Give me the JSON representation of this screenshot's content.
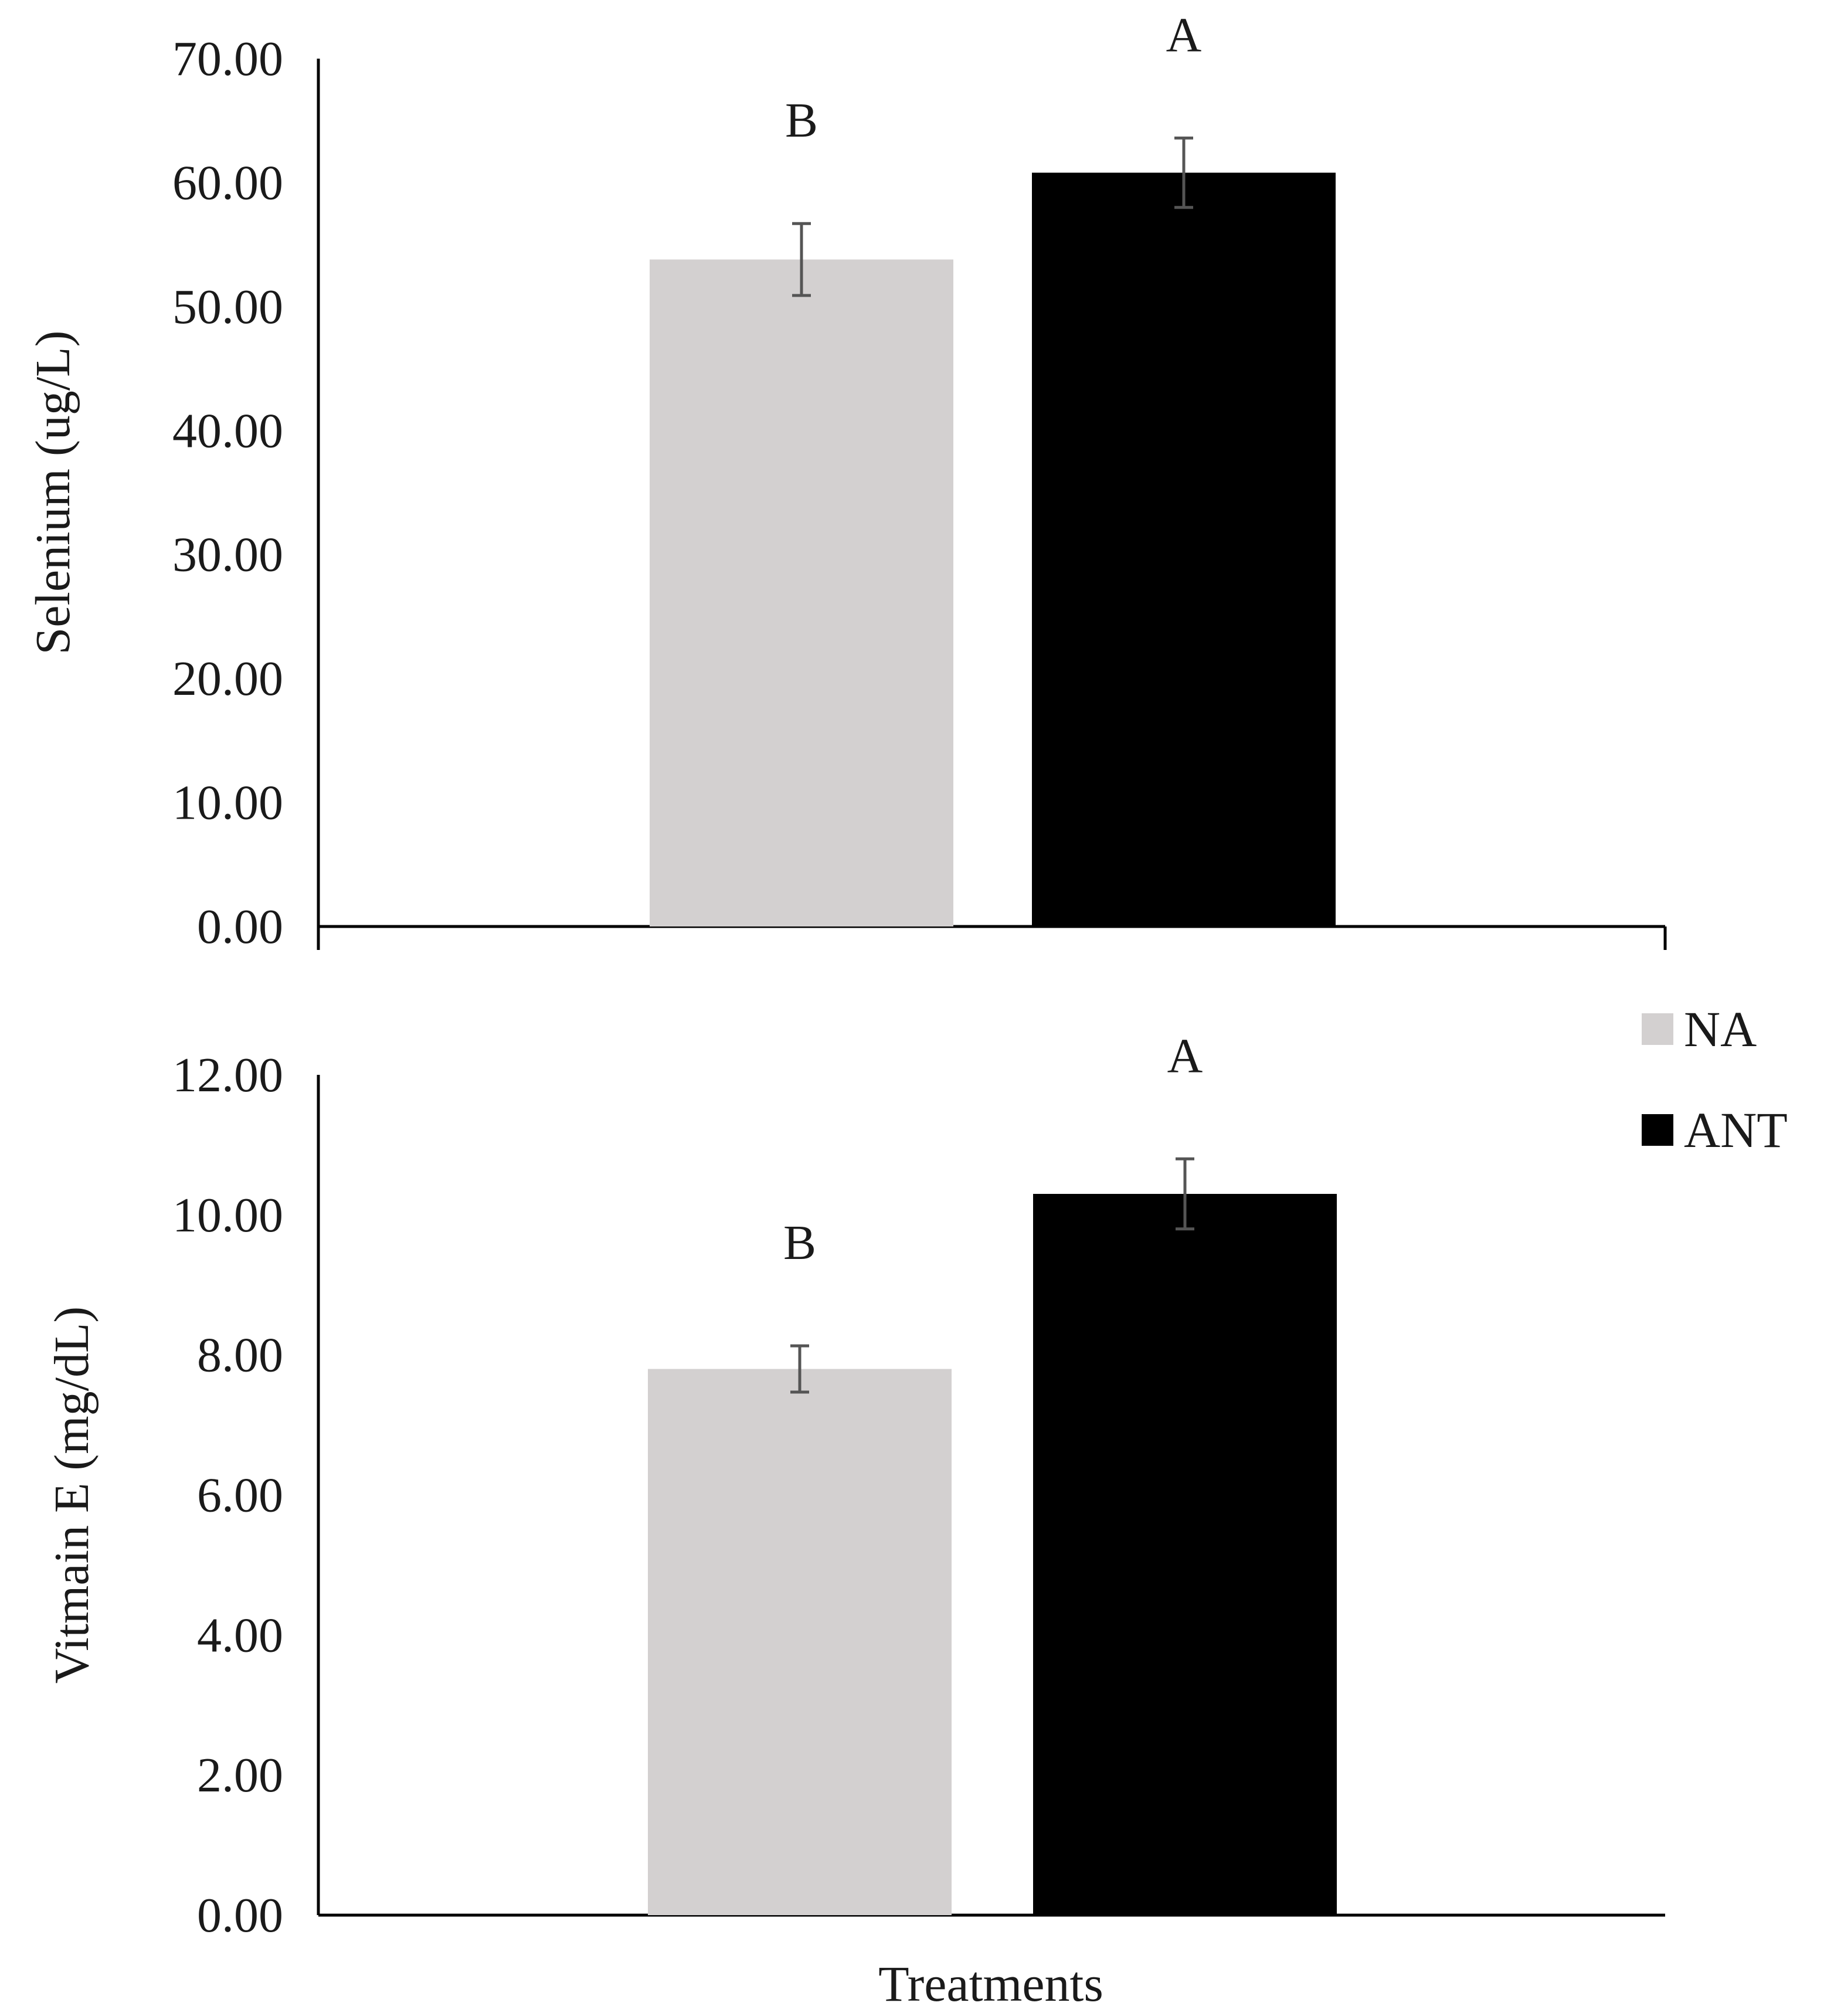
{
  "chart_data": [
    {
      "type": "bar",
      "ylabel": "Selenium (ug/L)",
      "ylim": [
        0,
        70
      ],
      "yticks": [
        "0.00",
        "10.00",
        "20.00",
        "30.00",
        "40.00",
        "50.00",
        "60.00",
        "70.00"
      ],
      "series": [
        {
          "name": "NA",
          "value": 53.8,
          "error": 2.9,
          "letter": "B"
        },
        {
          "name": "ANT",
          "value": 60.8,
          "error": 2.8,
          "letter": "A"
        }
      ]
    },
    {
      "type": "bar",
      "ylabel": "Vitmain E (mg/dL)",
      "ylim": [
        0,
        12
      ],
      "yticks": [
        "0.00",
        "2.00",
        "4.00",
        "6.00",
        "8.00",
        "10.00",
        "12.00"
      ],
      "series": [
        {
          "name": "NA",
          "value": 7.8,
          "error": 0.33,
          "letter": "B"
        },
        {
          "name": "ANT",
          "value": 10.3,
          "error": 0.5,
          "letter": "A"
        }
      ]
    }
  ],
  "xlabel": "Treatments",
  "legend": [
    {
      "name": "NA",
      "color": "#d3d0d0"
    },
    {
      "name": "ANT",
      "color": "#000000"
    }
  ],
  "colors": {
    "NA": "#d3d0d0",
    "ANT": "#000000",
    "error_bar": "#555555",
    "axis": "#000000"
  }
}
